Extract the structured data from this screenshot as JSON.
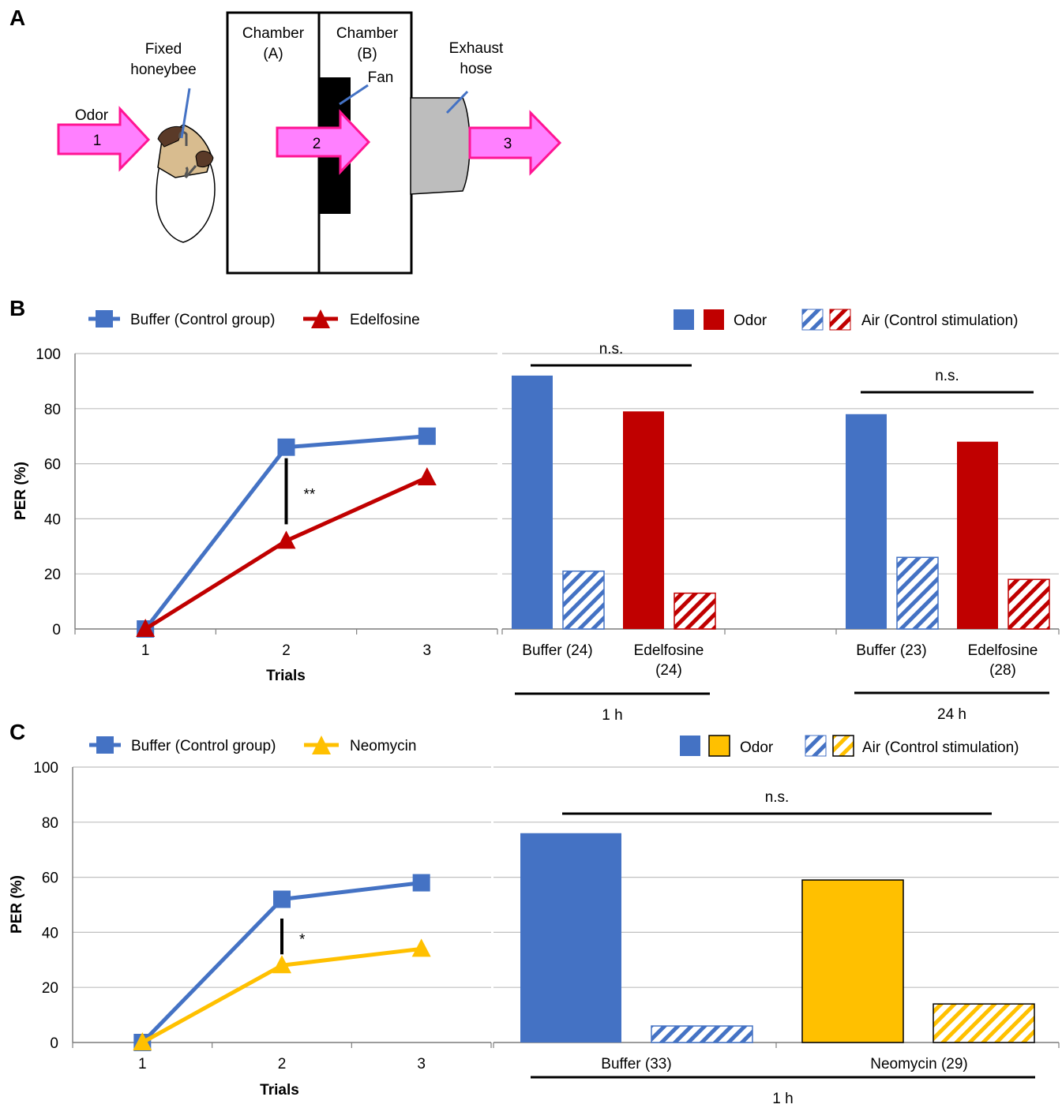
{
  "panel_a": {
    "letter": "A",
    "odor_label": "Odor",
    "bee_label_1": "Fixed",
    "bee_label_2": "honeybee",
    "chamber_a_1": "Chamber",
    "chamber_a_2": "(A)",
    "chamber_b_1": "Chamber",
    "chamber_b_2": "(B)",
    "fan_label": "Fan",
    "exhaust_1": "Exhaust",
    "exhaust_2": "hose",
    "arrows": [
      "1",
      "2",
      "3"
    ],
    "colors": {
      "arrow_fill": "#ff80ff",
      "arrow_stroke": "#ff1493",
      "fan": "#000000",
      "hose": "#bdbdbd",
      "bee_body": "#d8bc8f",
      "bee_head": "#5a3a28"
    }
  },
  "colors": {
    "blue": "#4472c4",
    "red": "#c00000",
    "yellow": "#ffc000",
    "grid": "#bfbfbf",
    "axis": "#808080"
  },
  "chart_data": [
    {
      "id": "B-left",
      "type": "line",
      "panel": "B",
      "ylabel": "PER (%)",
      "xlabel": "Trials",
      "x": [
        "1",
        "2",
        "3"
      ],
      "ylim": [
        0,
        100
      ],
      "yticks": [
        "0",
        "20",
        "40",
        "60",
        "80",
        "100"
      ],
      "series": [
        {
          "name": "Buffer (Control group)",
          "values": [
            0,
            66,
            70
          ],
          "color": "#4472c4",
          "marker": "square"
        },
        {
          "name": "Edelfosine",
          "values": [
            0,
            32,
            55
          ],
          "color": "#c00000",
          "marker": "triangle"
        }
      ],
      "annotation": {
        "text": "**",
        "x": "2",
        "from": 38,
        "to": 62
      }
    },
    {
      "id": "B-right",
      "type": "bar",
      "panel": "B",
      "ylim": [
        0,
        100
      ],
      "legend": {
        "odor": "Odor",
        "air": "Air (Control stimulation)"
      },
      "groups": [
        {
          "label": "1 h",
          "sig": "n.s.",
          "bars": [
            {
              "label": "Buffer (24)",
              "label2": "",
              "odor": 92,
              "air": 21,
              "color": "#4472c4"
            },
            {
              "label": "Edelfosine",
              "label2": "(24)",
              "odor": 79,
              "air": 13,
              "color": "#c00000"
            }
          ]
        },
        {
          "label": "24 h",
          "sig": "n.s.",
          "bars": [
            {
              "label": "Buffer (23)",
              "label2": "",
              "odor": 78,
              "air": 26,
              "color": "#4472c4"
            },
            {
              "label": "Edelfosine",
              "label2": "(28)",
              "odor": 68,
              "air": 18,
              "color": "#c00000"
            }
          ]
        }
      ]
    },
    {
      "id": "C-left",
      "type": "line",
      "panel": "C",
      "ylabel": "PER (%)",
      "xlabel": "Trials",
      "x": [
        "1",
        "2",
        "3"
      ],
      "ylim": [
        0,
        100
      ],
      "yticks": [
        "0",
        "20",
        "40",
        "60",
        "80",
        "100"
      ],
      "series": [
        {
          "name": "Buffer (Control group)",
          "values": [
            0,
            52,
            58
          ],
          "color": "#4472c4",
          "marker": "square"
        },
        {
          "name": "Neomycin",
          "values": [
            0,
            28,
            34
          ],
          "color": "#ffc000",
          "marker": "triangle"
        }
      ],
      "annotation": {
        "text": "*",
        "x": "2",
        "from": 32,
        "to": 45
      }
    },
    {
      "id": "C-right",
      "type": "bar",
      "panel": "C",
      "ylim": [
        0,
        100
      ],
      "legend": {
        "odor": "Odor",
        "air": "Air (Control stimulation)"
      },
      "groups": [
        {
          "label": "1 h",
          "sig": "n.s.",
          "bars": [
            {
              "label": "Buffer (33)",
              "odor": 76,
              "air": 6,
              "color": "#4472c4"
            },
            {
              "label": "Neomycin (29)",
              "odor": 59,
              "air": 14,
              "color": "#ffc000"
            }
          ]
        }
      ]
    }
  ],
  "panel_b": {
    "letter": "B"
  },
  "panel_c": {
    "letter": "C"
  }
}
